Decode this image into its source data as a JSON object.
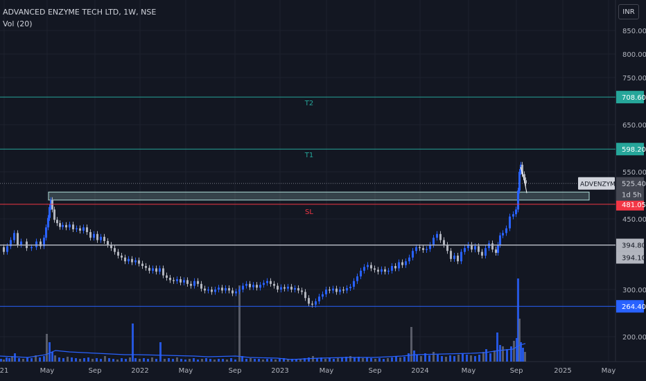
{
  "header": {
    "title": "ADVANCED ENZYME TECH LTD, 1W, NSE",
    "indicator": "Vol (20)",
    "currency": "INR"
  },
  "chart_data": {
    "type": "candlestick",
    "symbol": "ADVENZYMES",
    "last_price": "525.40",
    "countdown": "1d 5h",
    "y_ticks": [
      "850.00",
      "800.00",
      "750.00",
      "650.00",
      "550.00",
      "450.00",
      "300.00",
      "200.00"
    ],
    "x_ticks": [
      "21",
      "May",
      "Sep",
      "2022",
      "May",
      "Sep",
      "2023",
      "May",
      "Sep",
      "2024",
      "May",
      "Sep",
      "2025",
      "May"
    ],
    "levels": [
      {
        "label": "T2",
        "value": "708.60",
        "color": "#26a69a"
      },
      {
        "label": "T1",
        "value": "598.20",
        "color": "#26a69a"
      },
      {
        "label": "SL",
        "value": "481.05",
        "color": "#f23645"
      },
      {
        "label": "",
        "value": "394.80",
        "color": "#b2b5be"
      },
      {
        "label": "",
        "value": "394.10",
        "color": "#b2b5be"
      },
      {
        "label": "",
        "value": "264.40",
        "color": "#2962ff"
      }
    ],
    "price_path": [
      [
        0,
        390
      ],
      [
        5,
        380
      ],
      [
        10,
        392
      ],
      [
        15,
        405
      ],
      [
        20,
        420
      ],
      [
        25,
        395
      ],
      [
        30,
        402
      ],
      [
        38,
        388
      ],
      [
        45,
        390
      ],
      [
        52,
        402
      ],
      [
        58,
        392
      ],
      [
        63,
        410
      ],
      [
        66,
        432
      ],
      [
        69,
        452
      ],
      [
        71,
        475
      ],
      [
        73,
        490
      ],
      [
        75,
        470
      ],
      [
        78,
        448
      ],
      [
        82,
        441
      ],
      [
        86,
        433
      ],
      [
        90,
        437
      ],
      [
        95,
        432
      ],
      [
        100,
        438
      ],
      [
        105,
        428
      ],
      [
        110,
        430
      ],
      [
        115,
        425
      ],
      [
        120,
        432
      ],
      [
        125,
        422
      ],
      [
        130,
        410
      ],
      [
        135,
        418
      ],
      [
        140,
        405
      ],
      [
        145,
        412
      ],
      [
        150,
        403
      ],
      [
        155,
        395
      ],
      [
        160,
        388
      ],
      [
        165,
        380
      ],
      [
        170,
        372
      ],
      [
        175,
        368
      ],
      [
        180,
        360
      ],
      [
        185,
        365
      ],
      [
        190,
        358
      ],
      [
        195,
        362
      ],
      [
        200,
        355
      ],
      [
        205,
        350
      ],
      [
        210,
        346
      ],
      [
        215,
        340
      ],
      [
        220,
        345
      ],
      [
        225,
        338
      ],
      [
        230,
        345
      ],
      [
        235,
        330
      ],
      [
        240,
        325
      ],
      [
        245,
        320
      ],
      [
        250,
        318
      ],
      [
        255,
        322
      ],
      [
        260,
        315
      ],
      [
        265,
        320
      ],
      [
        270,
        312
      ],
      [
        275,
        308
      ],
      [
        280,
        318
      ],
      [
        285,
        312
      ],
      [
        290,
        302
      ],
      [
        295,
        298
      ],
      [
        300,
        300
      ],
      [
        305,
        295
      ],
      [
        310,
        300
      ],
      [
        315,
        304
      ],
      [
        320,
        298
      ],
      [
        325,
        303
      ],
      [
        330,
        298
      ],
      [
        335,
        292
      ],
      [
        340,
        296
      ],
      [
        345,
        300
      ],
      [
        350,
        308
      ],
      [
        355,
        312
      ],
      [
        360,
        305
      ],
      [
        365,
        310
      ],
      [
        370,
        304
      ],
      [
        375,
        310
      ],
      [
        380,
        314
      ],
      [
        385,
        318
      ],
      [
        390,
        312
      ],
      [
        395,
        308
      ],
      [
        400,
        300
      ],
      [
        405,
        305
      ],
      [
        410,
        302
      ],
      [
        415,
        306
      ],
      [
        420,
        300
      ],
      [
        425,
        303
      ],
      [
        430,
        298
      ],
      [
        435,
        295
      ],
      [
        440,
        282
      ],
      [
        445,
        270
      ],
      [
        450,
        268
      ],
      [
        455,
        275
      ],
      [
        460,
        285
      ],
      [
        465,
        290
      ],
      [
        470,
        300
      ],
      [
        475,
        298
      ],
      [
        480,
        302
      ],
      [
        485,
        295
      ],
      [
        490,
        300
      ],
      [
        495,
        298
      ],
      [
        500,
        303
      ],
      [
        505,
        306
      ],
      [
        510,
        318
      ],
      [
        515,
        328
      ],
      [
        520,
        340
      ],
      [
        525,
        348
      ],
      [
        530,
        352
      ],
      [
        535,
        345
      ],
      [
        540,
        342
      ],
      [
        545,
        338
      ],
      [
        550,
        343
      ],
      [
        555,
        338
      ],
      [
        560,
        340
      ],
      [
        565,
        350
      ],
      [
        570,
        345
      ],
      [
        575,
        358
      ],
      [
        580,
        352
      ],
      [
        585,
        360
      ],
      [
        590,
        368
      ],
      [
        595,
        382
      ],
      [
        600,
        390
      ],
      [
        605,
        388
      ],
      [
        610,
        384
      ],
      [
        615,
        386
      ],
      [
        620,
        395
      ],
      [
        625,
        410
      ],
      [
        630,
        418
      ],
      [
        635,
        405
      ],
      [
        640,
        395
      ],
      [
        645,
        382
      ],
      [
        650,
        365
      ],
      [
        655,
        372
      ],
      [
        660,
        360
      ],
      [
        665,
        380
      ],
      [
        670,
        388
      ],
      [
        675,
        395
      ],
      [
        680,
        385
      ],
      [
        685,
        392
      ],
      [
        690,
        380
      ],
      [
        695,
        372
      ],
      [
        700,
        388
      ],
      [
        705,
        398
      ],
      [
        710,
        385
      ],
      [
        715,
        378
      ],
      [
        718,
        395
      ],
      [
        721,
        415
      ],
      [
        725,
        420
      ],
      [
        730,
        430
      ],
      [
        735,
        455
      ],
      [
        740,
        460
      ],
      [
        744,
        470
      ],
      [
        747,
        510
      ],
      [
        749,
        550
      ],
      [
        751,
        565
      ],
      [
        753,
        545
      ],
      [
        756,
        532
      ],
      [
        758,
        525
      ]
    ],
    "volume_bars": [
      [
        0,
        4
      ],
      [
        4,
        3
      ],
      [
        8,
        6
      ],
      [
        12,
        5
      ],
      [
        16,
        8
      ],
      [
        20,
        12
      ],
      [
        26,
        5
      ],
      [
        32,
        4
      ],
      [
        38,
        6
      ],
      [
        44,
        5
      ],
      [
        50,
        9
      ],
      [
        56,
        6
      ],
      [
        62,
        8
      ],
      [
        66,
        40
      ],
      [
        70,
        28
      ],
      [
        74,
        14
      ],
      [
        78,
        9
      ],
      [
        84,
        6
      ],
      [
        90,
        5
      ],
      [
        96,
        7
      ],
      [
        102,
        6
      ],
      [
        108,
        5
      ],
      [
        114,
        4
      ],
      [
        120,
        5
      ],
      [
        126,
        6
      ],
      [
        132,
        4
      ],
      [
        138,
        5
      ],
      [
        144,
        4
      ],
      [
        150,
        8
      ],
      [
        156,
        5
      ],
      [
        162,
        4
      ],
      [
        168,
        3
      ],
      [
        174,
        5
      ],
      [
        180,
        4
      ],
      [
        186,
        6
      ],
      [
        190,
        55
      ],
      [
        194,
        5
      ],
      [
        200,
        4
      ],
      [
        206,
        5
      ],
      [
        212,
        4
      ],
      [
        218,
        6
      ],
      [
        224,
        4
      ],
      [
        230,
        28
      ],
      [
        236,
        4
      ],
      [
        242,
        5
      ],
      [
        248,
        4
      ],
      [
        254,
        6
      ],
      [
        260,
        4
      ],
      [
        266,
        3
      ],
      [
        272,
        4
      ],
      [
        278,
        5
      ],
      [
        284,
        3
      ],
      [
        290,
        4
      ],
      [
        296,
        5
      ],
      [
        302,
        4
      ],
      [
        308,
        3
      ],
      [
        314,
        4
      ],
      [
        320,
        4
      ],
      [
        326,
        3
      ],
      [
        332,
        5
      ],
      [
        338,
        3
      ],
      [
        344,
        110
      ],
      [
        348,
        8
      ],
      [
        354,
        4
      ],
      [
        360,
        5
      ],
      [
        366,
        4
      ],
      [
        372,
        4
      ],
      [
        378,
        3
      ],
      [
        384,
        4
      ],
      [
        390,
        4
      ],
      [
        396,
        3
      ],
      [
        402,
        4
      ],
      [
        408,
        5
      ],
      [
        414,
        3
      ],
      [
        420,
        4
      ],
      [
        426,
        3
      ],
      [
        432,
        4
      ],
      [
        438,
        5
      ],
      [
        444,
        6
      ],
      [
        450,
        8
      ],
      [
        456,
        5
      ],
      [
        462,
        6
      ],
      [
        468,
        4
      ],
      [
        474,
        5
      ],
      [
        480,
        4
      ],
      [
        486,
        5
      ],
      [
        492,
        6
      ],
      [
        498,
        7
      ],
      [
        504,
        8
      ],
      [
        510,
        6
      ],
      [
        516,
        7
      ],
      [
        522,
        5
      ],
      [
        528,
        6
      ],
      [
        534,
        5
      ],
      [
        540,
        4
      ],
      [
        546,
        5
      ],
      [
        552,
        4
      ],
      [
        558,
        5
      ],
      [
        564,
        6
      ],
      [
        570,
        8
      ],
      [
        576,
        6
      ],
      [
        582,
        7
      ],
      [
        588,
        12
      ],
      [
        592,
        50
      ],
      [
        596,
        16
      ],
      [
        600,
        10
      ],
      [
        606,
        8
      ],
      [
        612,
        12
      ],
      [
        618,
        9
      ],
      [
        624,
        14
      ],
      [
        630,
        10
      ],
      [
        636,
        8
      ],
      [
        642,
        7
      ],
      [
        648,
        9
      ],
      [
        654,
        8
      ],
      [
        660,
        10
      ],
      [
        666,
        12
      ],
      [
        672,
        10
      ],
      [
        678,
        9
      ],
      [
        684,
        8
      ],
      [
        690,
        10
      ],
      [
        696,
        14
      ],
      [
        700,
        18
      ],
      [
        706,
        12
      ],
      [
        712,
        16
      ],
      [
        716,
        42
      ],
      [
        720,
        24
      ],
      [
        724,
        22
      ],
      [
        730,
        18
      ],
      [
        736,
        22
      ],
      [
        740,
        30
      ],
      [
        744,
        34
      ],
      [
        746,
        120
      ],
      [
        748,
        62
      ],
      [
        750,
        28
      ],
      [
        753,
        20
      ],
      [
        756,
        14
      ]
    ],
    "vol_ma_path": [
      [
        0,
        8
      ],
      [
        40,
        6
      ],
      [
        66,
        10
      ],
      [
        80,
        16
      ],
      [
        100,
        14
      ],
      [
        140,
        12
      ],
      [
        180,
        10
      ],
      [
        200,
        10
      ],
      [
        240,
        9
      ],
      [
        280,
        8
      ],
      [
        300,
        7
      ],
      [
        340,
        8
      ],
      [
        360,
        6
      ],
      [
        400,
        5
      ],
      [
        420,
        3
      ],
      [
        440,
        4
      ],
      [
        460,
        5
      ],
      [
        500,
        6
      ],
      [
        540,
        6
      ],
      [
        580,
        8
      ],
      [
        600,
        10
      ],
      [
        640,
        11
      ],
      [
        680,
        12
      ],
      [
        700,
        13
      ],
      [
        720,
        16
      ],
      [
        740,
        18
      ],
      [
        750,
        24
      ],
      [
        758,
        26
      ]
    ]
  }
}
